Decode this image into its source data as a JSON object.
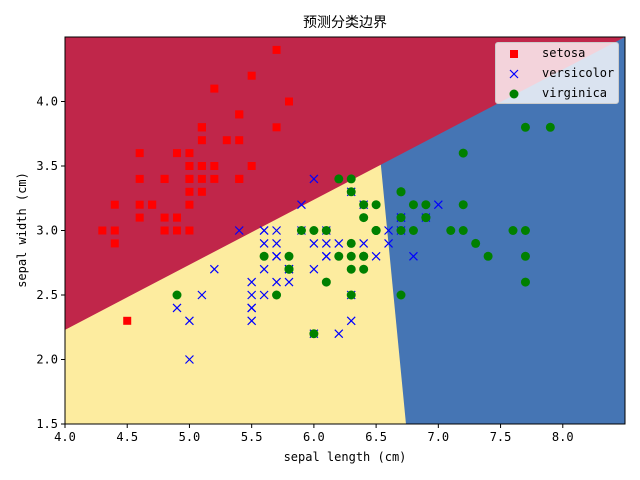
{
  "chart_data": {
    "type": "scatter",
    "title": "预测分类边界",
    "xlabel": "sepal length (cm)",
    "ylabel": "sepal width (cm)",
    "xlim": [
      4.0,
      8.5
    ],
    "ylim": [
      1.5,
      4.5
    ],
    "xticks": [
      "4.0",
      "4.5",
      "5.0",
      "5.5",
      "6.0",
      "6.5",
      "7.0",
      "7.5",
      "8.0"
    ],
    "yticks": [
      "1.5",
      "2.0",
      "2.5",
      "3.0",
      "3.5",
      "4.0"
    ],
    "grid": false,
    "legend_position": "top-right",
    "regions": [
      {
        "class": "setosa",
        "color": "#c0264a"
      },
      {
        "class": "versicolor",
        "color": "#fdec9f"
      },
      {
        "class": "virginica",
        "color": "#4575b4"
      }
    ],
    "boundaries": {
      "setosa_upper": {
        "x0": 4.0,
        "y0": 2.23,
        "x1": 8.5,
        "y1": 4.5
      },
      "virginica_left": {
        "x0": 6.74,
        "y0": 1.5,
        "x1": 6.53,
        "y1": 3.59
      }
    },
    "series": [
      {
        "name": "setosa",
        "marker": "square",
        "color": "#ff0000",
        "points": [
          [
            5.1,
            3.5
          ],
          [
            4.9,
            3.0
          ],
          [
            4.7,
            3.2
          ],
          [
            4.6,
            3.1
          ],
          [
            5.0,
            3.6
          ],
          [
            5.4,
            3.9
          ],
          [
            4.6,
            3.4
          ],
          [
            5.0,
            3.4
          ],
          [
            4.4,
            2.9
          ],
          [
            4.9,
            3.1
          ],
          [
            5.4,
            3.7
          ],
          [
            4.8,
            3.4
          ],
          [
            4.8,
            3.0
          ],
          [
            4.3,
            3.0
          ],
          [
            5.8,
            4.0
          ],
          [
            5.7,
            4.4
          ],
          [
            5.4,
            3.9
          ],
          [
            5.1,
            3.5
          ],
          [
            5.7,
            3.8
          ],
          [
            5.1,
            3.8
          ],
          [
            5.4,
            3.4
          ],
          [
            5.1,
            3.7
          ],
          [
            4.6,
            3.6
          ],
          [
            5.1,
            3.3
          ],
          [
            4.8,
            3.4
          ],
          [
            5.0,
            3.0
          ],
          [
            5.0,
            3.4
          ],
          [
            5.2,
            3.5
          ],
          [
            5.2,
            3.4
          ],
          [
            4.7,
            3.2
          ],
          [
            4.8,
            3.1
          ],
          [
            5.4,
            3.4
          ],
          [
            5.2,
            4.1
          ],
          [
            5.5,
            4.2
          ],
          [
            4.9,
            3.1
          ],
          [
            5.0,
            3.2
          ],
          [
            5.5,
            3.5
          ],
          [
            4.9,
            3.6
          ],
          [
            4.4,
            3.0
          ],
          [
            5.1,
            3.4
          ],
          [
            5.0,
            3.5
          ],
          [
            4.5,
            2.3
          ],
          [
            4.4,
            3.2
          ],
          [
            5.0,
            3.5
          ],
          [
            5.1,
            3.8
          ],
          [
            4.8,
            3.0
          ],
          [
            5.1,
            3.8
          ],
          [
            4.6,
            3.2
          ],
          [
            5.3,
            3.7
          ],
          [
            5.0,
            3.3
          ]
        ]
      },
      {
        "name": "versicolor",
        "marker": "x",
        "color": "#0000ff",
        "points": [
          [
            7.0,
            3.2
          ],
          [
            6.4,
            3.2
          ],
          [
            6.9,
            3.1
          ],
          [
            5.5,
            2.3
          ],
          [
            6.5,
            2.8
          ],
          [
            5.7,
            2.8
          ],
          [
            6.3,
            3.3
          ],
          [
            4.9,
            2.4
          ],
          [
            6.6,
            2.9
          ],
          [
            5.2,
            2.7
          ],
          [
            5.0,
            2.0
          ],
          [
            5.9,
            3.0
          ],
          [
            6.0,
            2.2
          ],
          [
            6.1,
            2.9
          ],
          [
            5.6,
            2.9
          ],
          [
            6.7,
            3.1
          ],
          [
            5.6,
            3.0
          ],
          [
            5.8,
            2.7
          ],
          [
            6.2,
            2.2
          ],
          [
            5.6,
            2.5
          ],
          [
            5.9,
            3.2
          ],
          [
            6.1,
            2.8
          ],
          [
            6.3,
            2.5
          ],
          [
            6.1,
            2.8
          ],
          [
            6.4,
            2.9
          ],
          [
            6.6,
            3.0
          ],
          [
            6.8,
            2.8
          ],
          [
            6.7,
            3.0
          ],
          [
            6.0,
            2.9
          ],
          [
            5.7,
            2.6
          ],
          [
            5.5,
            2.4
          ],
          [
            5.5,
            2.4
          ],
          [
            5.8,
            2.7
          ],
          [
            6.0,
            2.7
          ],
          [
            5.4,
            3.0
          ],
          [
            6.0,
            3.4
          ],
          [
            6.7,
            3.1
          ],
          [
            6.3,
            2.3
          ],
          [
            5.6,
            3.0
          ],
          [
            5.5,
            2.5
          ],
          [
            5.5,
            2.6
          ],
          [
            6.1,
            3.0
          ],
          [
            5.8,
            2.6
          ],
          [
            5.0,
            2.3
          ],
          [
            5.6,
            2.7
          ],
          [
            5.7,
            3.0
          ],
          [
            5.7,
            2.9
          ],
          [
            6.2,
            2.9
          ],
          [
            5.1,
            2.5
          ],
          [
            5.7,
            2.8
          ]
        ]
      },
      {
        "name": "virginica",
        "marker": "circle",
        "color": "#008000",
        "points": [
          [
            6.3,
            3.3
          ],
          [
            5.8,
            2.7
          ],
          [
            7.1,
            3.0
          ],
          [
            6.3,
            2.9
          ],
          [
            6.5,
            3.0
          ],
          [
            7.6,
            3.0
          ],
          [
            4.9,
            2.5
          ],
          [
            7.3,
            2.9
          ],
          [
            6.7,
            2.5
          ],
          [
            7.2,
            3.6
          ],
          [
            6.5,
            3.2
          ],
          [
            6.4,
            2.7
          ],
          [
            6.8,
            3.0
          ],
          [
            5.7,
            2.5
          ],
          [
            5.8,
            2.8
          ],
          [
            6.4,
            3.2
          ],
          [
            6.5,
            3.0
          ],
          [
            7.7,
            3.8
          ],
          [
            7.7,
            2.6
          ],
          [
            6.0,
            2.2
          ],
          [
            6.9,
            3.2
          ],
          [
            5.6,
            2.8
          ],
          [
            7.7,
            2.8
          ],
          [
            6.3,
            2.7
          ],
          [
            6.7,
            3.3
          ],
          [
            7.2,
            3.2
          ],
          [
            6.2,
            2.8
          ],
          [
            6.1,
            3.0
          ],
          [
            6.4,
            2.8
          ],
          [
            7.2,
            3.0
          ],
          [
            7.4,
            2.8
          ],
          [
            7.9,
            3.8
          ],
          [
            6.4,
            2.8
          ],
          [
            6.3,
            2.8
          ],
          [
            6.1,
            2.6
          ],
          [
            7.7,
            3.0
          ],
          [
            6.3,
            3.4
          ],
          [
            6.4,
            3.1
          ],
          [
            6.0,
            3.0
          ],
          [
            6.9,
            3.1
          ],
          [
            6.7,
            3.1
          ],
          [
            6.9,
            3.1
          ],
          [
            5.8,
            2.7
          ],
          [
            6.8,
            3.2
          ],
          [
            6.7,
            3.3
          ],
          [
            6.7,
            3.0
          ],
          [
            6.3,
            2.5
          ],
          [
            6.5,
            3.0
          ],
          [
            6.2,
            3.4
          ],
          [
            5.9,
            3.0
          ]
        ]
      }
    ]
  }
}
